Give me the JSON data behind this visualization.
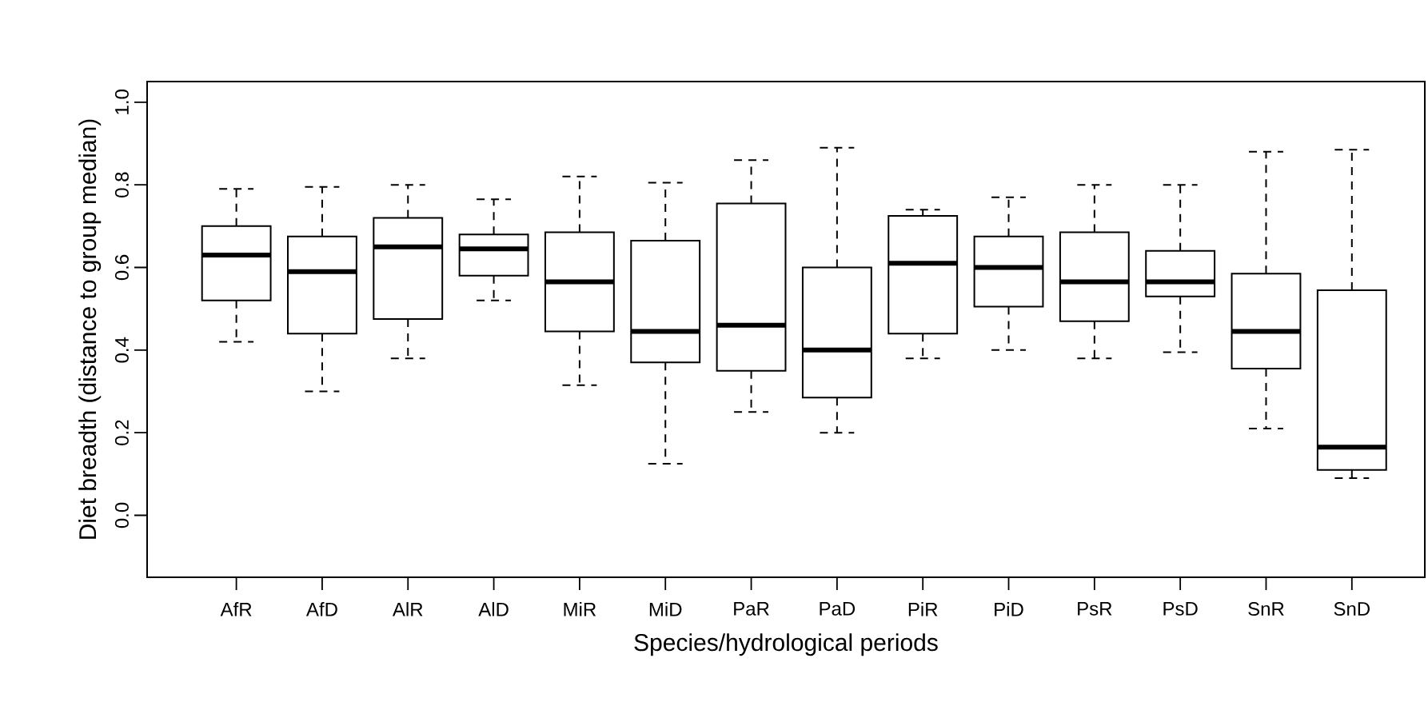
{
  "chart_data": {
    "type": "box",
    "xlabel": "Species/hydrological periods",
    "ylabel": "Diet breadth (distance to group median)",
    "categories": [
      "AfR",
      "AfD",
      "AlR",
      "AlD",
      "MiR",
      "MiD",
      "PaR",
      "PaD",
      "PiR",
      "PiD",
      "PsR",
      "PsD",
      "SnR",
      "SnD"
    ],
    "ylim": [
      -0.15,
      1.05
    ],
    "yticks": [
      {
        "value": 0,
        "label": "0.0"
      },
      0.2,
      0.4,
      0.6,
      0.8,
      {
        "value": 1,
        "label": "1.0"
      }
    ],
    "grid": false,
    "boxes": [
      {
        "low": 0.42,
        "q1": 0.52,
        "median": 0.63,
        "q3": 0.7,
        "high": 0.79
      },
      {
        "low": 0.3,
        "q1": 0.44,
        "median": 0.59,
        "q3": 0.675,
        "high": 0.795
      },
      {
        "low": 0.38,
        "q1": 0.475,
        "median": 0.65,
        "q3": 0.72,
        "high": 0.8
      },
      {
        "low": 0.52,
        "q1": 0.58,
        "median": 0.645,
        "q3": 0.68,
        "high": 0.765
      },
      {
        "low": 0.315,
        "q1": 0.445,
        "median": 0.565,
        "q3": 0.685,
        "high": 0.82
      },
      {
        "low": 0.125,
        "q1": 0.37,
        "median": 0.445,
        "q3": 0.665,
        "high": 0.805
      },
      {
        "low": 0.25,
        "q1": 0.35,
        "median": 0.46,
        "q3": 0.755,
        "high": 0.86
      },
      {
        "low": 0.2,
        "q1": 0.285,
        "median": 0.4,
        "q3": 0.6,
        "high": 0.89
      },
      {
        "low": 0.38,
        "q1": 0.44,
        "median": 0.61,
        "q3": 0.725,
        "high": 0.74
      },
      {
        "low": 0.4,
        "q1": 0.505,
        "median": 0.6,
        "q3": 0.675,
        "high": 0.77
      },
      {
        "low": 0.38,
        "q1": 0.47,
        "median": 0.565,
        "q3": 0.685,
        "high": 0.8
      },
      {
        "low": 0.395,
        "q1": 0.53,
        "median": 0.565,
        "q3": 0.64,
        "high": 0.8
      },
      {
        "low": 0.21,
        "q1": 0.355,
        "median": 0.445,
        "q3": 0.585,
        "high": 0.88
      },
      {
        "low": 0.09,
        "q1": 0.11,
        "median": 0.165,
        "q3": 0.545,
        "high": 0.885
      }
    ]
  }
}
